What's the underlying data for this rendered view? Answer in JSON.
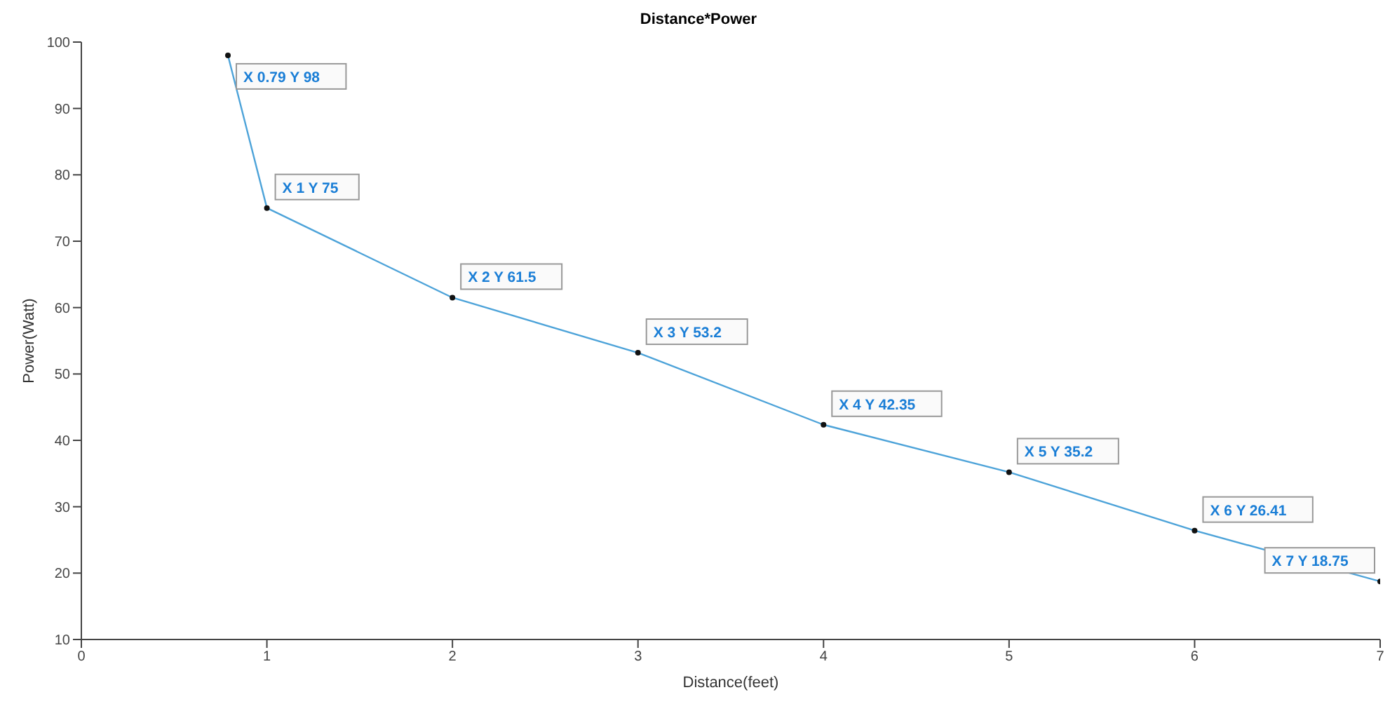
{
  "chart_data": {
    "type": "line",
    "title": "Distance*Power",
    "xlabel": "Distance(feet)",
    "ylabel": "Power(Watt)",
    "x": [
      0.79,
      1,
      2,
      3,
      4,
      5,
      6,
      7
    ],
    "series": [
      {
        "color": "#4da3d9",
        "values": [
          98,
          75,
          61.5,
          53.2,
          42.35,
          35.2,
          26.41,
          18.75
        ]
      }
    ],
    "xlim": [
      0,
      7
    ],
    "xticks": [
      0,
      1,
      2,
      3,
      4,
      5,
      6,
      7
    ],
    "ylim": [
      10,
      100
    ],
    "yticks": [
      10,
      20,
      30,
      40,
      50,
      60,
      70,
      80,
      90,
      100
    ],
    "grid": false,
    "legend": false,
    "marker": "circle",
    "line_style": "solid",
    "annotations": [
      {
        "text": "X 0.79 Y 98",
        "x": 0.79,
        "y": 98
      },
      {
        "text": "X 1 Y 75",
        "x": 1,
        "y": 75
      },
      {
        "text": "X 2 Y 61.5",
        "x": 2,
        "y": 61.5
      },
      {
        "text": "X 3 Y 53.2",
        "x": 3,
        "y": 53.2
      },
      {
        "text": "X 4 Y 42.35",
        "x": 4,
        "y": 42.35
      },
      {
        "text": "X 5 Y 35.2",
        "x": 5,
        "y": 35.2
      },
      {
        "text": "X 6 Y 26.41",
        "x": 6,
        "y": 26.41
      },
      {
        "text": "X 7 Y 18.75",
        "x": 7,
        "y": 18.75
      }
    ]
  }
}
